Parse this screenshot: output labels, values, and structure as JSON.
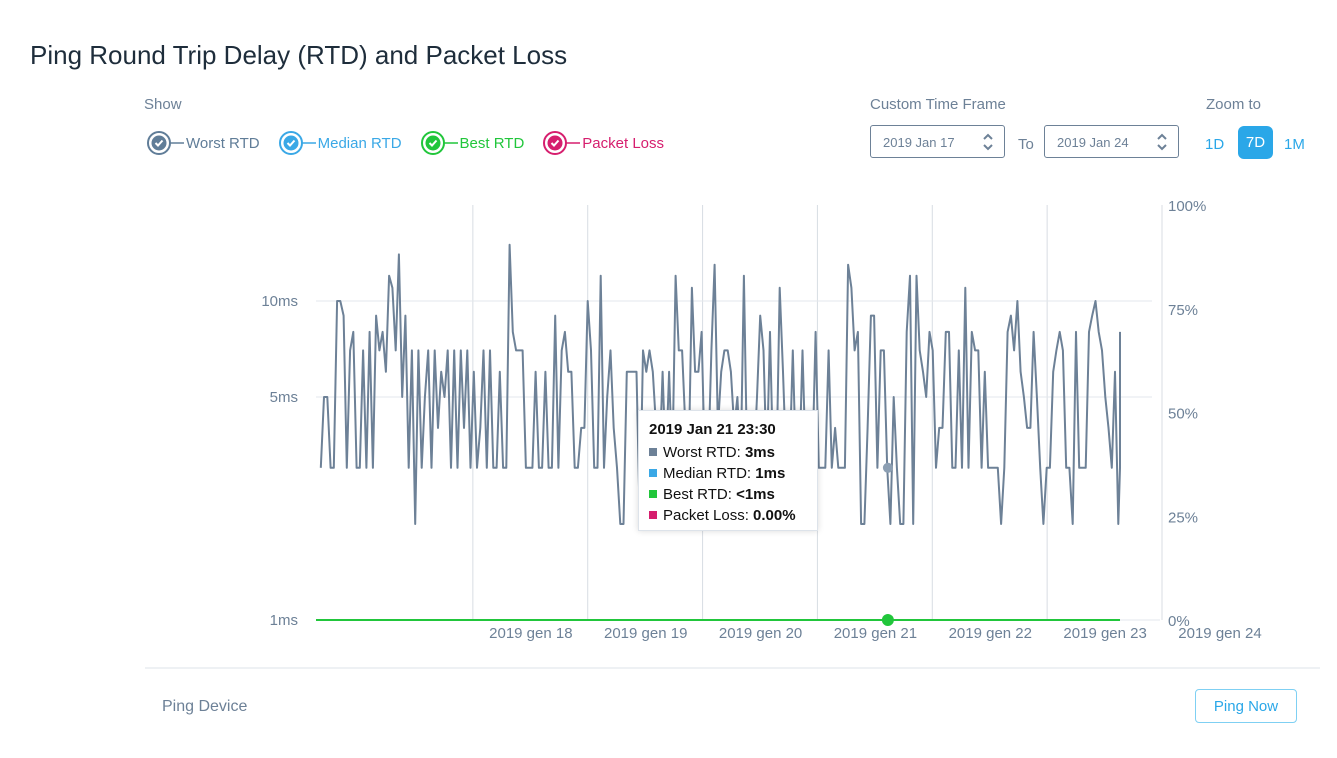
{
  "title": "Ping Round Trip Delay (RTD) and Packet Loss",
  "show_label": "Show",
  "legend": [
    {
      "label": "Worst RTD",
      "color": "#607d98",
      "text_color": "#607d98"
    },
    {
      "label": "Median RTD",
      "color": "#3aa8e6",
      "text_color": "#3aa8e6"
    },
    {
      "label": "Best RTD",
      "color": "#21c63b",
      "text_color": "#21c63b"
    },
    {
      "label": "Packet Loss",
      "color": "#d61e6e",
      "text_color": "#d61e6e"
    }
  ],
  "time_frame": {
    "label": "Custom Time Frame",
    "from": "2019 Jan 17",
    "to_label": "To",
    "to": "2019 Jan 24"
  },
  "zoom": {
    "label": "Zoom to",
    "options": [
      "1D",
      "7D",
      "1M"
    ],
    "active": "7D"
  },
  "tooltip": {
    "title": "2019 Jan 21 23:30",
    "rows": [
      {
        "label": "Worst RTD: ",
        "value": "3ms",
        "color": "#6d8197"
      },
      {
        "label": "Median RTD: ",
        "value": "1ms",
        "color": "#3aa8e6"
      },
      {
        "label": "Best RTD: ",
        "value": "<1ms",
        "color": "#21c63b"
      },
      {
        "label": "Packet Loss: ",
        "value": "0.00%",
        "color": "#d61e6e"
      }
    ]
  },
  "chart_data": {
    "type": "line",
    "title": "",
    "x_range": [
      "2019-01-17 00:00",
      "2019-01-24 00:00"
    ],
    "x_ticks": [
      "2019 gen 18",
      "2019 gen 19",
      "2019 gen 20",
      "2019 gen 21",
      "2019 gen 22",
      "2019 gen 23",
      "2019 gen 24"
    ],
    "y_left": {
      "ticks": [
        "10ms",
        "5ms",
        "1ms"
      ],
      "scale": "log"
    },
    "y_right": {
      "ticks": [
        "100%",
        "75%",
        "50%",
        "25%",
        "0%"
      ],
      "range": [
        0,
        100
      ]
    },
    "grid": true,
    "series": [
      {
        "name": "Worst RTD",
        "color": "#6d8197",
        "hour_step": 2,
        "start_hour_offset": 1,
        "values_ms": [
          3,
          5,
          5,
          3,
          3,
          10,
          10,
          9,
          3,
          7,
          8,
          3,
          3,
          7,
          3,
          8,
          3,
          9,
          7,
          8,
          6,
          12,
          11,
          7,
          14,
          5,
          9,
          3,
          7,
          2,
          7,
          3,
          5,
          7,
          3,
          7,
          4,
          6,
          5,
          7,
          3,
          7,
          3,
          7,
          4,
          7,
          3,
          6,
          3,
          4,
          7,
          3,
          7,
          3,
          3,
          6,
          3,
          3,
          15,
          8,
          7,
          7,
          7,
          3,
          3,
          3,
          6,
          3,
          3,
          6,
          3,
          3,
          9,
          3,
          7,
          8,
          6,
          6,
          3,
          3,
          4,
          4,
          10,
          7,
          3,
          3,
          12,
          3,
          5,
          7,
          4,
          3,
          2,
          2,
          6,
          6,
          6,
          6,
          2,
          7,
          6,
          7,
          6,
          4,
          3,
          6,
          3,
          6,
          3,
          12,
          7,
          7,
          4,
          3,
          11,
          6,
          6,
          8,
          3,
          3,
          7,
          13,
          4,
          6,
          7,
          7,
          6,
          4,
          5,
          3,
          12,
          3,
          4,
          3,
          5,
          9,
          7,
          3,
          8,
          3,
          3,
          11,
          6,
          3,
          3,
          7,
          3,
          3,
          7,
          3,
          3,
          3,
          8,
          3,
          3,
          3,
          7,
          3,
          4,
          3,
          3,
          3,
          13,
          11,
          7,
          8,
          2,
          2,
          4,
          9,
          9,
          3,
          7,
          7,
          3,
          2,
          5,
          3,
          2,
          2,
          8,
          12,
          2,
          12,
          7,
          6,
          5,
          8,
          7,
          3,
          4,
          4,
          8,
          8,
          3,
          3,
          7,
          3,
          11,
          3,
          8,
          7,
          7,
          3,
          6,
          3,
          3,
          3,
          3,
          2,
          3,
          8,
          9,
          7,
          10,
          6,
          5,
          4,
          4,
          8,
          5,
          3,
          2,
          3,
          3,
          6,
          7,
          8,
          7,
          3,
          3,
          2,
          8,
          3,
          3,
          3,
          8,
          9,
          10,
          8,
          7,
          5,
          4,
          3,
          6,
          2,
          3,
          8
        ],
        "note_values": "estimated"
      },
      {
        "name": "Best RTD",
        "color": "#21c63b",
        "values_ms": "<1ms constant"
      }
    ],
    "marker": {
      "x": "2019-01-21 23:30",
      "worst_rtd": "3ms",
      "best_rtd": "<1ms"
    }
  },
  "footer": {
    "ping_device": "Ping Device",
    "ping_now": "Ping Now"
  }
}
